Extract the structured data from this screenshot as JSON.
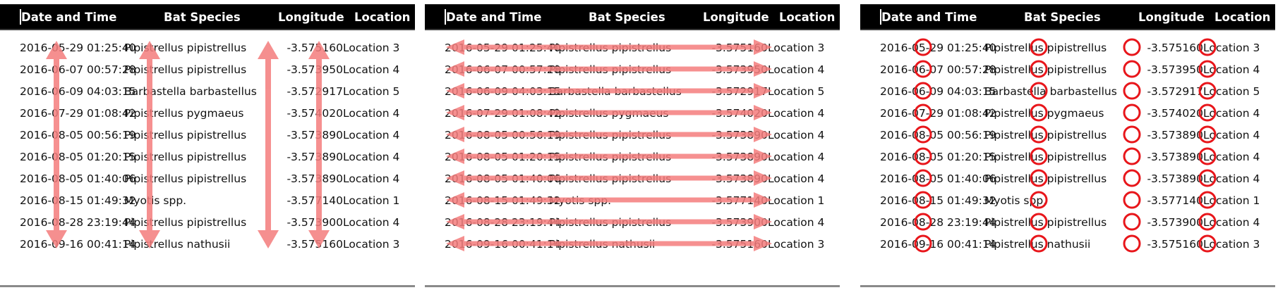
{
  "columns": {
    "date": "Date and Time",
    "species": "Bat Species",
    "longitude": "Longitude",
    "location": "Location"
  },
  "rows": [
    {
      "date": "2016-05-29 01:25:40",
      "species": "Pipistrellus pipistrellus",
      "longitude": "-3.575160",
      "location": "Location 3"
    },
    {
      "date": "2016-06-07 00:57:28",
      "species": "Pipistrellus pipistrellus",
      "longitude": "-3.573950",
      "location": "Location 4"
    },
    {
      "date": "2016-06-09 04:03:15",
      "species": "Barbastella barbastellus",
      "longitude": "-3.572917",
      "location": "Location 5"
    },
    {
      "date": "2016-07-29 01:08:42",
      "species": "Pipistrellus pygmaeus",
      "longitude": "-3.574020",
      "location": "Location 4"
    },
    {
      "date": "2016-08-05 00:56:19",
      "species": "Pipistrellus pipistrellus",
      "longitude": "-3.573890",
      "location": "Location 4"
    },
    {
      "date": "2016-08-05 01:20:15",
      "species": "Pipistrellus pipistrellus",
      "longitude": "-3.573890",
      "location": "Location 4"
    },
    {
      "date": "2016-08-05 01:40:06",
      "species": "Pipistrellus pipistrellus",
      "longitude": "-3.573890",
      "location": "Location 4"
    },
    {
      "date": "2016-08-15 01:49:32",
      "species": "Myotis spp.",
      "longitude": "-3.577140",
      "location": "Location 1"
    },
    {
      "date": "2016-08-28 23:19:44",
      "species": "Pipistrellus pipistrellus",
      "longitude": "-3.573900",
      "location": "Location 4"
    },
    {
      "date": "2016-09-16 00:41:14",
      "species": "Pipistrellus nathusii",
      "longitude": "-3.575160",
      "location": "Location 3"
    }
  ],
  "colors": {
    "header_bg": "#000000",
    "header_text": "#ffffff",
    "arrow": "#f47c7c",
    "circle": "#e8161b"
  },
  "panel_annotations": [
    "vertical-arrows",
    "horizontal-arrows",
    "circles"
  ]
}
